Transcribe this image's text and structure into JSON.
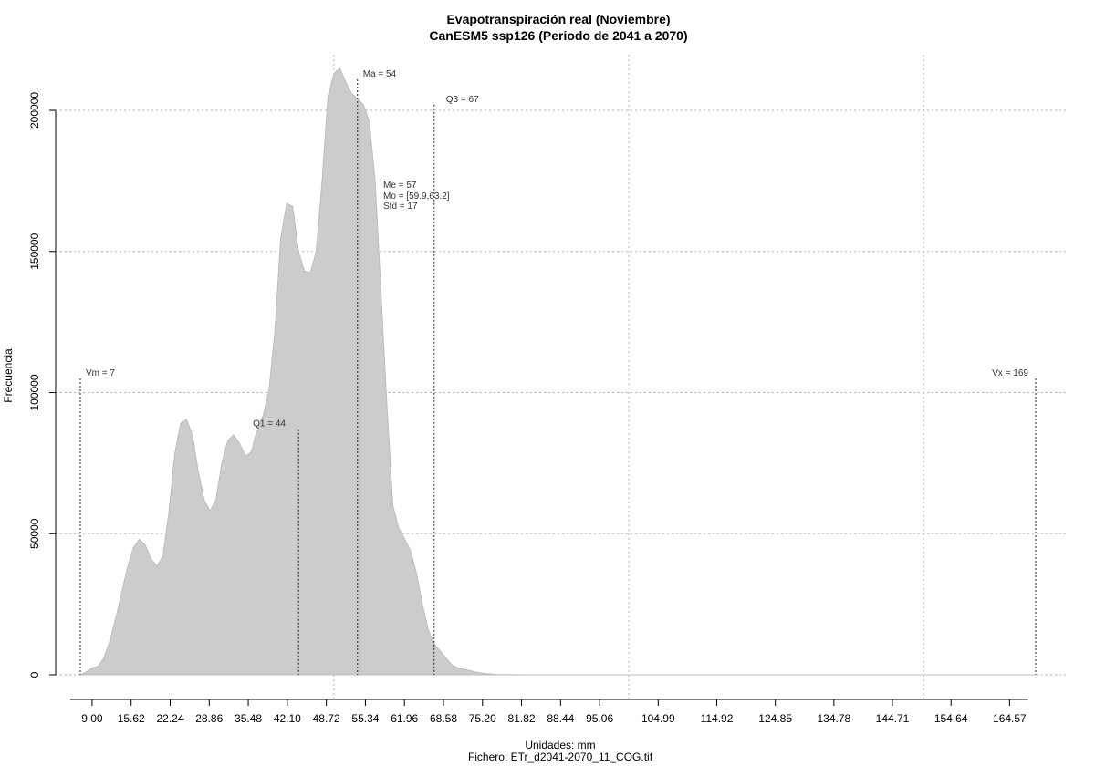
{
  "chart_data": {
    "type": "area",
    "title": "Evapotranspiración real (Noviembre)",
    "subtitle": "CanESM5 ssp126 (Periodo de 2041 a 2070)",
    "xlabel": "Unidades: mm",
    "ylabel": "Frecuencia",
    "caption": "Fichero: ETr_d2041-2070_11_COG.tif",
    "xlim": [
      7,
      169
    ],
    "ylim": [
      0,
      215000
    ],
    "grid": true,
    "fill_color": "#cccccc",
    "x_ticks": [
      "9.00",
      "15.62",
      "22.24",
      "28.86",
      "35.48",
      "42.10",
      "48.72",
      "55.34",
      "61.96",
      "68.58",
      "75.20",
      "81.82",
      "88.44",
      "95.06",
      "104.99",
      "114.92",
      "124.85",
      "134.78",
      "144.71",
      "154.64",
      "164.57"
    ],
    "y_ticks": [
      "0",
      "50000",
      "100000",
      "150000",
      "200000"
    ],
    "x": [
      7,
      8,
      9,
      10,
      11,
      12,
      13,
      14,
      15,
      16,
      17,
      18,
      19,
      20,
      21,
      22,
      23,
      24,
      25,
      26,
      27,
      28,
      29,
      30,
      31,
      32,
      33,
      34,
      35,
      36,
      37,
      38,
      39,
      40,
      41,
      42,
      43,
      44,
      45,
      46,
      47,
      48,
      49,
      50,
      51,
      52,
      53,
      54,
      55,
      56,
      57,
      58,
      59,
      60,
      61,
      62,
      63,
      64,
      65,
      66,
      67,
      68,
      69,
      70,
      71,
      72,
      73,
      74,
      75,
      76,
      77,
      78,
      79,
      80,
      81,
      82,
      83,
      84,
      85,
      86,
      87,
      88,
      89,
      90,
      91,
      92,
      93,
      94,
      95,
      96,
      98,
      100,
      102,
      105,
      110,
      120,
      130,
      140,
      150,
      160,
      169
    ],
    "y": [
      0,
      1000,
      2500,
      3000,
      6000,
      12000,
      20000,
      29000,
      38000,
      45000,
      48000,
      46000,
      41000,
      38500,
      42000,
      57000,
      78000,
      89000,
      90500,
      85000,
      72000,
      62000,
      58000,
      62000,
      75000,
      83000,
      85000,
      82000,
      77500,
      79000,
      87000,
      92000,
      101000,
      122000,
      155000,
      167000,
      166000,
      150000,
      143000,
      142500,
      150000,
      175000,
      205000,
      213000,
      215000,
      210000,
      206000,
      204000,
      202000,
      196000,
      175000,
      135000,
      95000,
      60000,
      52000,
      48000,
      44000,
      36000,
      25000,
      16000,
      11000,
      8500,
      6000,
      3500,
      2500,
      2000,
      1500,
      1000,
      600,
      400,
      200,
      100,
      50,
      30,
      20,
      10,
      5,
      0,
      0,
      0,
      0,
      0,
      0,
      0,
      0,
      0,
      0,
      0,
      0,
      0,
      0,
      0,
      0,
      0,
      0,
      0,
      0,
      0,
      0,
      0,
      0
    ],
    "annotations": [
      {
        "id": "vm",
        "label": "Vm = 7",
        "x": 7
      },
      {
        "id": "q1",
        "label": "Q1 = 44",
        "x": 44
      },
      {
        "id": "ma",
        "label": "Ma = 54",
        "x": 54
      },
      {
        "id": "q3",
        "label": "Q3 = 67",
        "x": 67
      },
      {
        "id": "vx",
        "label": "Vx = 169",
        "x": 169
      }
    ],
    "stats_text": [
      "Me = 57",
      "Mo = [59.9,63.2]",
      "Std = 17"
    ]
  }
}
